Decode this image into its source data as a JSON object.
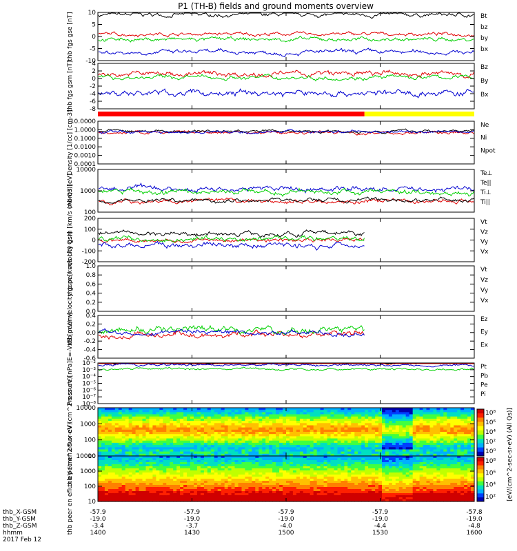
{
  "title": "P1 (TH-B) fields and ground moments overview",
  "footer": {
    "orbit_rows": [
      "thb_X-GSM",
      "thb_Y-GSM",
      "thb_Z-GSM",
      "hhmm"
    ],
    "date": "2017 Feb 12",
    "columns": [
      {
        "x": "-57.9",
        "y": "-19.0",
        "z": "-3.4",
        "t": "1400"
      },
      {
        "x": "-57.9",
        "y": "-19.0",
        "z": "-3.7",
        "t": "1430"
      },
      {
        "x": "-57.9",
        "y": "-19.0",
        "z": "-4.0",
        "t": "1500"
      },
      {
        "x": "-57.9",
        "y": "-19.0",
        "z": "-4.4",
        "t": "1530"
      },
      {
        "x": "-57.8",
        "y": "-19.0",
        "z": "-4.8",
        "t": "1600"
      }
    ]
  },
  "colors": {
    "black": "#000000",
    "red": "#e00000",
    "green": "#00d000",
    "blue": "#0000d0",
    "mode_red": "#ff0000",
    "mode_yellow": "#ffff00"
  },
  "mode_bar": {
    "switch_time_hhmm": "1525",
    "before_color": "red",
    "after_color": "yellow"
  },
  "colorbar": {
    "ticks": [
      "10⁸",
      "10⁶",
      "10⁴",
      "10²",
      "10⁰"
    ],
    "label": "[eV/(cm^2-sec-sr-eV) (All Qs)]"
  },
  "colorbar2": {
    "ticks": [
      "10⁸",
      "10⁶",
      "10⁴",
      "10²"
    ]
  },
  "chart_data": [
    {
      "type": "line",
      "panel": "fgs_gse",
      "ylabel": "thb fgs gse [nT]",
      "ylim": [
        -10,
        10
      ],
      "yticks": [
        "10",
        "5",
        "0",
        "-5",
        "-10"
      ],
      "series": [
        {
          "name": "Bt",
          "color": "black",
          "approx": "8 to 10"
        },
        {
          "name": "bz",
          "color": "red",
          "approx": "~1"
        },
        {
          "name": "by",
          "color": "green",
          "approx": "~-1"
        },
        {
          "name": "bx",
          "color": "blue",
          "approx": "-5 to -8"
        }
      ]
    },
    {
      "type": "line",
      "panel": "fgs_gsm",
      "ylabel": "thb fgs gsm [nT]",
      "ylim": [
        -9,
        4
      ],
      "yticks": [
        "4",
        "2",
        "0",
        "-2",
        "-4",
        "-6",
        "-8"
      ],
      "series": [
        {
          "name": "Bz",
          "color": "red",
          "approx": "~1"
        },
        {
          "name": "By",
          "color": "green",
          "approx": "~0"
        },
        {
          "name": "Bx",
          "color": "blue",
          "approx": "-4 to -6"
        }
      ]
    },
    {
      "type": "line",
      "panel": "density",
      "ylabel": "Density [1/cc] [cm-3]",
      "scale": "log",
      "ylim": [
        0.0001,
        10
      ],
      "yticks": [
        "10.0000",
        "1.0000",
        "0.1000",
        "0.0100",
        "0.0010",
        "0.0001"
      ],
      "series": [
        {
          "name": "Ne",
          "color": "red",
          "approx": "~0.5"
        },
        {
          "name": "Ni",
          "color": "black",
          "approx": "~0.7"
        },
        {
          "name": "Npot",
          "color": "blue",
          "approx": "~0.6"
        }
      ]
    },
    {
      "type": "line",
      "panel": "temperature",
      "ylabel": "mom3 [eV]",
      "scale": "log",
      "ylim": [
        20,
        10000
      ],
      "yticks": [
        "10000",
        "1000",
        "100"
      ],
      "series": [
        {
          "name": "Te⊥",
          "color": "red",
          "approx": "~100"
        },
        {
          "name": "Te||",
          "color": "black",
          "approx": "~120"
        },
        {
          "name": "Ti⊥",
          "color": "blue",
          "approx": "~600"
        },
        {
          "name": "Ti||",
          "color": "green",
          "approx": "~400"
        }
      ]
    },
    {
      "type": "line",
      "panel": "peir_velocity",
      "ylabel": "thb peir velocity gsm [km/s (All Qs)]",
      "ylim": [
        -200,
        200
      ],
      "yticks": [
        "200",
        "100",
        "0",
        "-100",
        "-200"
      ],
      "series": [
        {
          "name": "Vt",
          "color": "black",
          "approx": "~60"
        },
        {
          "name": "Vz",
          "color": "red",
          "approx": "~0"
        },
        {
          "name": "Vy",
          "color": "green",
          "approx": "~10"
        },
        {
          "name": "Vx",
          "color": "blue",
          "approx": "~-50"
        }
      ]
    },
    {
      "type": "line",
      "panel": "peer_velocity",
      "ylabel": "thb peer velocity gsm [km/s (All Qs)]",
      "ylim": [
        0,
        1
      ],
      "yticks": [
        "1.0",
        "0.8",
        "0.6",
        "0.4",
        "0.2",
        "0.0"
      ],
      "series": [
        {
          "name": "Vt",
          "color": "black"
        },
        {
          "name": "Vz",
          "color": "red"
        },
        {
          "name": "Vy",
          "color": "green"
        },
        {
          "name": "Vx",
          "color": "blue"
        }
      ]
    },
    {
      "type": "line",
      "panel": "efield",
      "ylabel": "E=-VxB [mV/m]",
      "ylim": [
        -0.6,
        0.4
      ],
      "yticks": [
        "0.4",
        "0.2",
        "0.0",
        "-0.2",
        "-0.4",
        "-0.6"
      ],
      "series": [
        {
          "name": "Ez",
          "color": "red",
          "approx": "~-0.05"
        },
        {
          "name": "Ey",
          "color": "green",
          "approx": "~0.05"
        },
        {
          "name": "Ex",
          "color": "blue",
          "approx": "~0"
        }
      ]
    },
    {
      "type": "line",
      "panel": "pressure",
      "ylabel": "Pressure [nPa]",
      "scale": "log",
      "ylim": [
        1e-08,
        0.01
      ],
      "yticks": [
        "10⁻²",
        "10⁻³",
        "10⁻⁴",
        "10⁻⁵",
        "10⁻⁶",
        "10⁻⁷",
        "10⁻⁸"
      ],
      "series": [
        {
          "name": "Pt",
          "color": "black",
          "approx": "~0.02"
        },
        {
          "name": "Pb",
          "color": "red",
          "approx": "~0.01"
        },
        {
          "name": "Pe",
          "color": "green",
          "approx": "~0.001"
        },
        {
          "name": "Pi",
          "color": "blue",
          "approx": "~0.005"
        }
      ]
    },
    {
      "type": "heatmap",
      "panel": "peir_spec",
      "ylabel": "thb peir en eflux eV (cm^2-s-sr-eV)",
      "scale": "log",
      "ylim": [
        5,
        15000
      ],
      "yticks": [
        "10000",
        "1000",
        "100",
        "10"
      ]
    },
    {
      "type": "heatmap",
      "panel": "peer_spec",
      "ylabel": "thb peer en eflux eV (cm^2-s-sr-eV)",
      "scale": "log",
      "ylim": [
        5,
        15000
      ],
      "yticks": [
        "10000",
        "1000",
        "100",
        "10"
      ]
    }
  ]
}
